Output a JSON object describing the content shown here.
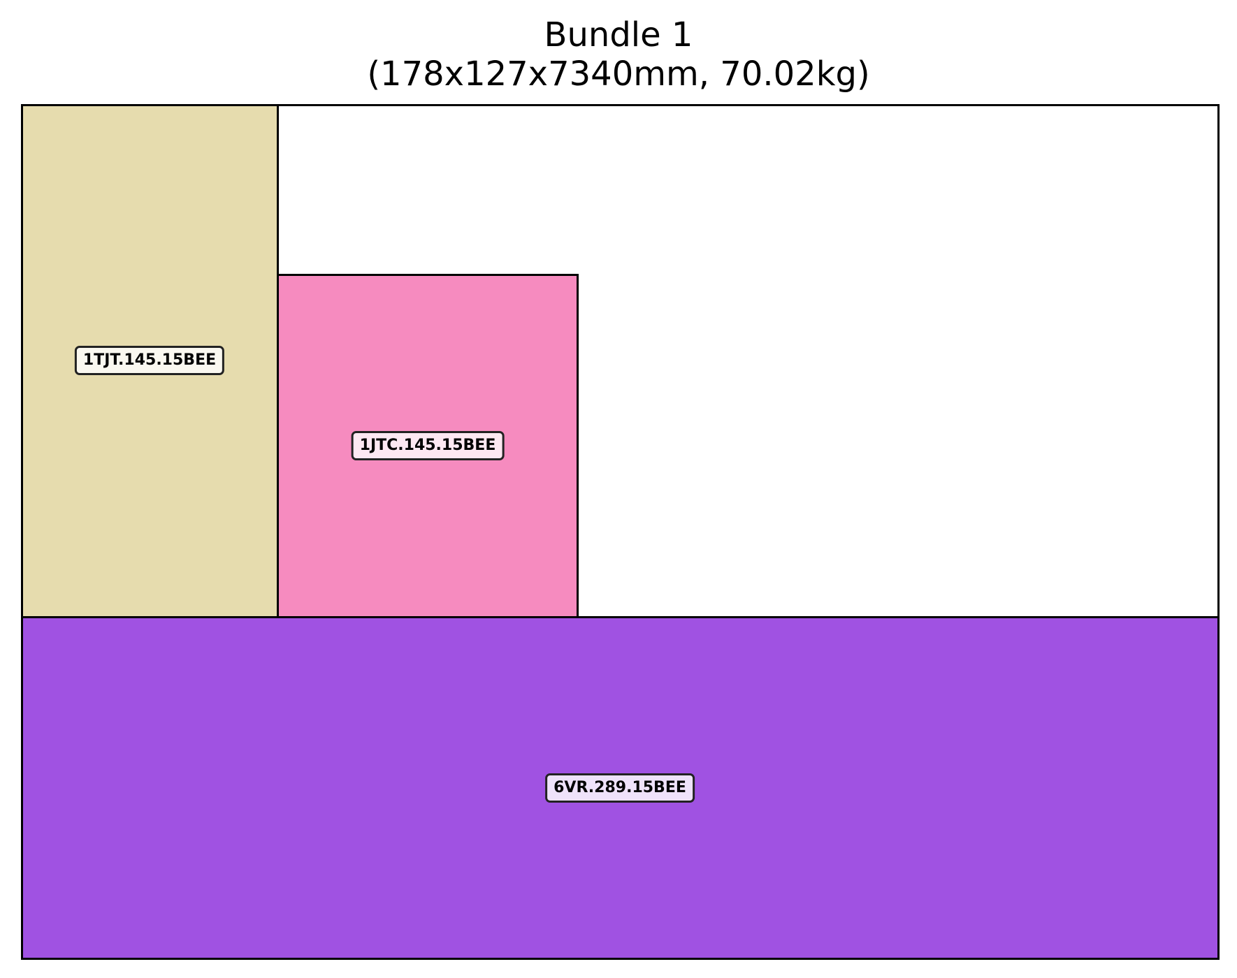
{
  "title": {
    "line1": "Bundle 1",
    "line2": "(178x127x7340mm, 70.02kg)"
  },
  "pieces": [
    {
      "id": "piece-1tjt",
      "label": "1TJT.145.15BEE",
      "color": "#e6dcae",
      "label_bg": "#faf8f0"
    },
    {
      "id": "piece-1jtc",
      "label": "1JTC.145.15BEE",
      "color": "#f68bbf",
      "label_bg": "#fde8f2"
    },
    {
      "id": "piece-6vr",
      "label": "6VR.289.15BEE",
      "color": "#a052e2",
      "label_bg": "#efe2fa"
    }
  ]
}
